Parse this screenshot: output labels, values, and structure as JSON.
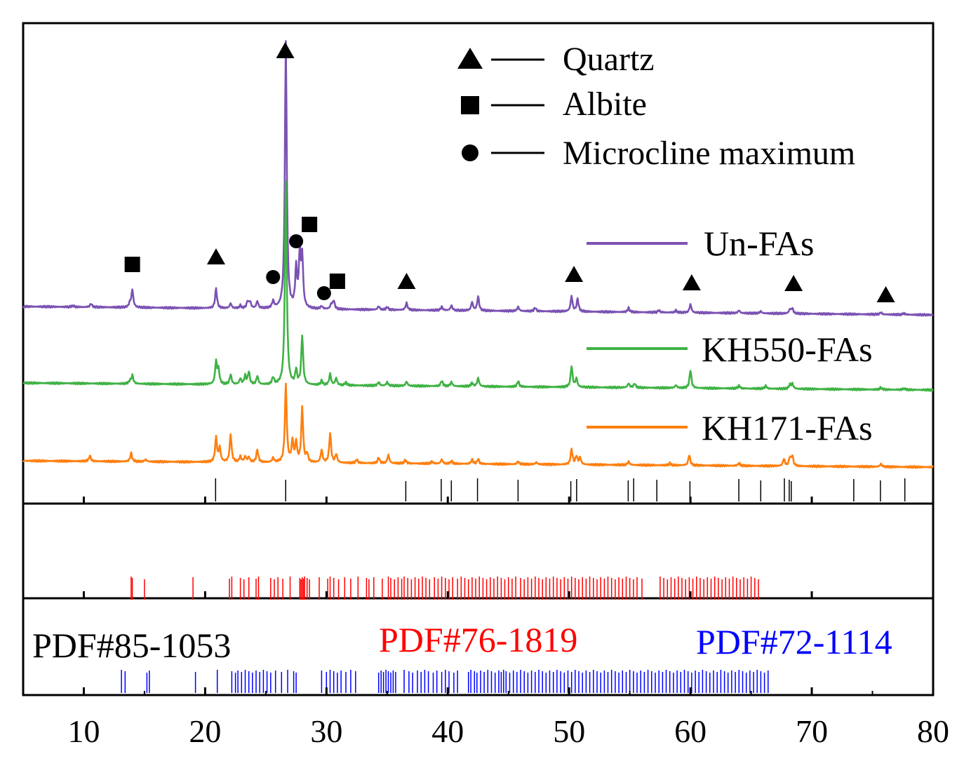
{
  "chart_data": {
    "type": "line",
    "title": "",
    "xlabel": "",
    "ylabel": "",
    "xlim": [
      5,
      80
    ],
    "x_ticks": [
      10,
      20,
      30,
      40,
      50,
      60,
      70,
      80
    ],
    "legend_phases": [
      {
        "name": "Quartz",
        "marker": "triangle"
      },
      {
        "name": "Albite",
        "marker": "square"
      },
      {
        "name": "Microcline maximum",
        "marker": "circle"
      }
    ],
    "series": [
      {
        "name": "Un-FAs",
        "color": "#7b52b2",
        "baseline": 0.0,
        "peaks": [
          [
            9.1,
            2
          ],
          [
            10.6,
            5
          ],
          [
            13.8,
            6
          ],
          [
            14.0,
            25
          ],
          [
            20.9,
            28
          ],
          [
            22.1,
            7
          ],
          [
            22.9,
            4
          ],
          [
            23.5,
            10
          ],
          [
            23.7,
            9
          ],
          [
            24.3,
            10
          ],
          [
            25.6,
            10
          ],
          [
            26.65,
            380
          ],
          [
            27.5,
            55
          ],
          [
            27.8,
            75
          ],
          [
            28.0,
            70
          ],
          [
            29.6,
            4
          ],
          [
            30.4,
            7
          ],
          [
            30.6,
            12
          ],
          [
            34.3,
            5
          ],
          [
            35.0,
            4
          ],
          [
            36.6,
            10
          ],
          [
            39.5,
            5
          ],
          [
            40.3,
            7
          ],
          [
            42.0,
            12
          ],
          [
            42.5,
            20
          ],
          [
            45.8,
            6
          ],
          [
            47.2,
            5
          ],
          [
            50.2,
            22
          ],
          [
            50.7,
            18
          ],
          [
            54.9,
            6
          ],
          [
            57.4,
            3
          ],
          [
            58.8,
            3
          ],
          [
            60.0,
            12
          ],
          [
            64.0,
            4
          ],
          [
            65.8,
            3
          ],
          [
            68.2,
            6
          ],
          [
            68.4,
            7
          ],
          [
            75.7,
            3
          ],
          [
            77.6,
            2
          ]
        ]
      },
      {
        "name": "KH550-FAs",
        "color": "#3fb244",
        "baseline": 0.0,
        "peaks": [
          [
            13.8,
            4
          ],
          [
            14.0,
            12
          ],
          [
            20.9,
            32
          ],
          [
            21.1,
            20
          ],
          [
            22.1,
            14
          ],
          [
            22.9,
            8
          ],
          [
            23.3,
            12
          ],
          [
            23.6,
            18
          ],
          [
            24.3,
            12
          ],
          [
            25.6,
            10
          ],
          [
            26.65,
            290
          ],
          [
            27.5,
            20
          ],
          [
            28.0,
            70
          ],
          [
            29.6,
            6
          ],
          [
            30.3,
            16
          ],
          [
            30.8,
            10
          ],
          [
            31.6,
            4
          ],
          [
            34.3,
            5
          ],
          [
            35.0,
            5
          ],
          [
            36.6,
            6
          ],
          [
            39.5,
            8
          ],
          [
            40.3,
            6
          ],
          [
            42.0,
            5
          ],
          [
            42.5,
            12
          ],
          [
            45.8,
            8
          ],
          [
            50.2,
            30
          ],
          [
            50.6,
            12
          ],
          [
            54.9,
            6
          ],
          [
            55.4,
            6
          ],
          [
            58.8,
            4
          ],
          [
            60.0,
            26
          ],
          [
            64.0,
            4
          ],
          [
            66.2,
            4
          ],
          [
            68.2,
            6
          ],
          [
            68.4,
            7
          ],
          [
            75.7,
            3
          ],
          [
            77.6,
            2
          ]
        ]
      },
      {
        "name": "KH171-FAs",
        "color": "#ff7f0e",
        "baseline": 0.0,
        "peaks": [
          [
            10.5,
            8
          ],
          [
            13.9,
            12
          ],
          [
            15.1,
            3
          ],
          [
            20.9,
            35
          ],
          [
            21.2,
            20
          ],
          [
            22.1,
            40
          ],
          [
            22.9,
            8
          ],
          [
            23.3,
            8
          ],
          [
            23.6,
            7
          ],
          [
            24.3,
            18
          ],
          [
            25.6,
            6
          ],
          [
            26.65,
            110
          ],
          [
            27.2,
            30
          ],
          [
            27.5,
            28
          ],
          [
            28.0,
            78
          ],
          [
            28.4,
            12
          ],
          [
            29.6,
            18
          ],
          [
            30.3,
            42
          ],
          [
            30.8,
            12
          ],
          [
            32.5,
            5
          ],
          [
            34.3,
            8
          ],
          [
            35.1,
            12
          ],
          [
            36.5,
            5
          ],
          [
            38.7,
            3
          ],
          [
            39.5,
            6
          ],
          [
            40.3,
            4
          ],
          [
            42.0,
            6
          ],
          [
            42.5,
            7
          ],
          [
            45.8,
            4
          ],
          [
            47.3,
            3
          ],
          [
            50.2,
            22
          ],
          [
            50.6,
            12
          ],
          [
            50.9,
            10
          ],
          [
            54.9,
            5
          ],
          [
            58.3,
            3
          ],
          [
            59.9,
            15
          ],
          [
            64.0,
            4
          ],
          [
            67.7,
            10
          ],
          [
            68.2,
            12
          ],
          [
            68.4,
            14
          ],
          [
            75.7,
            4
          ]
        ]
      }
    ],
    "reference_patterns": [
      {
        "name": "PDF#85-1053",
        "color": "#000000",
        "lines": [
          20.86,
          26.64,
          36.54,
          39.46,
          40.29,
          42.45,
          45.79,
          50.14,
          50.62,
          54.87,
          55.32,
          57.23,
          59.96,
          63.99,
          65.79,
          67.74,
          68.14,
          68.31,
          73.46,
          75.66,
          77.67
        ]
      },
      {
        "name": "PDF#76-1819",
        "color": "#ff0000",
        "lines": [
          13.9,
          14.0,
          15.0,
          19.0,
          22.0,
          22.2,
          22.9,
          23.2,
          23.6,
          24.2,
          24.4,
          25.4,
          25.7,
          26.0,
          26.4,
          27.0,
          27.8,
          27.9,
          28.0,
          28.1,
          28.2,
          28.4,
          28.6,
          29.4,
          30.1,
          30.3,
          30.6,
          31.0,
          31.5,
          32.0,
          32.6,
          33.3,
          33.5,
          33.9,
          34.6,
          35.1,
          35.3,
          35.6,
          35.9,
          36.2,
          36.4,
          36.7,
          37.0,
          37.3,
          37.6,
          37.9,
          38.2,
          38.5,
          38.9,
          39.2,
          39.5,
          39.8,
          40.1,
          40.4,
          40.8,
          41.1,
          41.4,
          41.7,
          42.0,
          42.3,
          42.6,
          42.9,
          43.2,
          43.5,
          43.8,
          44.1,
          44.4,
          44.7,
          45.0,
          45.3,
          45.6,
          46.0,
          46.3,
          46.6,
          46.9,
          47.2,
          47.5,
          47.8,
          48.1,
          48.4,
          48.7,
          49.0,
          49.3,
          49.6,
          49.9,
          50.2,
          50.5,
          50.8,
          51.1,
          51.4,
          51.7,
          52.0,
          52.3,
          52.6,
          52.9,
          53.2,
          53.5,
          53.8,
          54.1,
          54.4,
          54.7,
          55.0,
          55.3,
          55.6,
          56.0,
          57.5,
          57.8,
          58.1,
          58.4,
          58.7,
          59.0,
          59.3,
          59.6,
          59.9,
          60.2,
          60.5,
          60.8,
          61.1,
          61.4,
          61.7,
          62.0,
          62.3,
          62.6,
          62.9,
          63.2,
          63.5,
          63.8,
          64.1,
          64.4,
          64.7,
          65.0,
          65.3,
          65.6
        ],
        "labels_x": 0
      },
      {
        "name": "PDF#72-1114",
        "color": "#0000ff",
        "lines": [
          13.1,
          13.4,
          15.2,
          15.4,
          19.2,
          21.0,
          22.2,
          22.5,
          22.7,
          23.0,
          23.3,
          23.6,
          23.9,
          24.2,
          24.5,
          24.8,
          25.1,
          25.4,
          25.8,
          26.3,
          26.8,
          27.3,
          27.5,
          29.6,
          30.0,
          30.3,
          30.6,
          30.9,
          31.2,
          31.6,
          32.0,
          32.4,
          34.3,
          34.5,
          34.7,
          34.9,
          35.1,
          35.3,
          35.5,
          35.7,
          36.4,
          36.8,
          37.1,
          37.5,
          37.8,
          38.1,
          38.4,
          38.8,
          39.1,
          39.5,
          39.8,
          40.1,
          40.5,
          40.8,
          41.7,
          41.9,
          42.2,
          42.4,
          42.7,
          43.0,
          43.3,
          43.6,
          43.9,
          44.2,
          44.4,
          44.6,
          44.8,
          45.1,
          45.4,
          45.7,
          46.0,
          46.3,
          46.6,
          46.9,
          47.2,
          47.5,
          47.8,
          48.1,
          48.4,
          48.7,
          49.0,
          49.3,
          49.6,
          49.9,
          50.2,
          50.5,
          50.8,
          51.1,
          51.4,
          51.7,
          52.0,
          52.3,
          52.6,
          52.9,
          53.2,
          53.5,
          53.8,
          54.1,
          54.4,
          54.7,
          55.0,
          55.3,
          55.6,
          55.9,
          56.2,
          56.5,
          56.8,
          57.1,
          57.4,
          57.7,
          58.0,
          58.3,
          58.6,
          58.9,
          59.2,
          59.5,
          59.8,
          60.1,
          60.4,
          60.7,
          61.0,
          61.3,
          61.6,
          61.9,
          62.2,
          62.5,
          62.8,
          63.1,
          63.4,
          63.7,
          64.0,
          64.3,
          64.6,
          64.9,
          65.2,
          65.5,
          65.8,
          66.1,
          66.4
        ]
      }
    ],
    "phase_markers": [
      {
        "phase": "Albite",
        "marker": "square",
        "x": 14.0
      },
      {
        "phase": "Quartz",
        "marker": "triangle",
        "x": 20.9
      },
      {
        "phase": "Microcline maximum",
        "marker": "circle",
        "x": 25.6
      },
      {
        "phase": "Quartz",
        "marker": "triangle",
        "x": 26.6
      },
      {
        "phase": "Microcline maximum",
        "marker": "circle",
        "x": 27.5
      },
      {
        "phase": "Albite",
        "marker": "square",
        "x": 28.6
      },
      {
        "phase": "Microcline maximum",
        "marker": "circle",
        "x": 29.8
      },
      {
        "phase": "Albite",
        "marker": "square",
        "x": 30.9
      },
      {
        "phase": "Quartz",
        "marker": "triangle",
        "x": 36.6
      },
      {
        "phase": "Quartz",
        "marker": "triangle",
        "x": 50.4
      },
      {
        "phase": "Quartz",
        "marker": "triangle",
        "x": 60.1
      },
      {
        "phase": "Quartz",
        "marker": "triangle",
        "x": 68.5
      },
      {
        "phase": "Quartz",
        "marker": "triangle",
        "x": 76.1
      }
    ]
  }
}
